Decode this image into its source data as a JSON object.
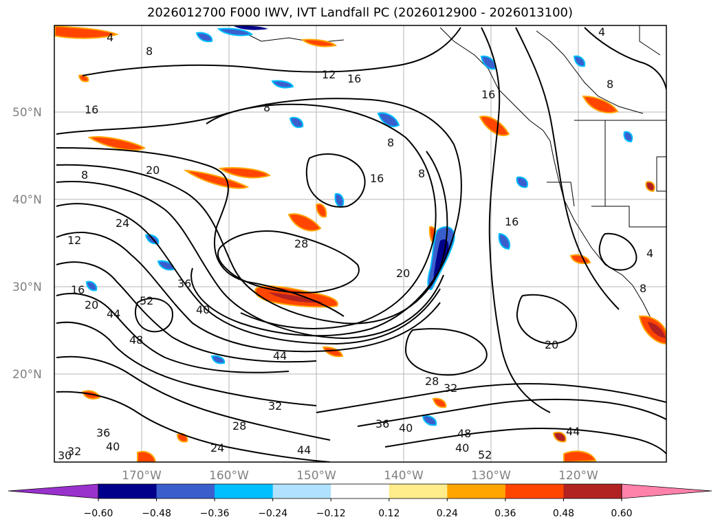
{
  "title": "2026012700 F000 IWV, IVT Landfall PC (2026012900 - 2026013100)",
  "map": {
    "lat_ticks": [
      "50°N",
      "40°N",
      "30°N",
      "20°N"
    ],
    "lon_ticks": [
      "170°W",
      "160°W",
      "150°W",
      "140°W",
      "130°W",
      "120°W"
    ],
    "contour_labels": [
      "4",
      "8",
      "12",
      "16",
      "8",
      "16",
      "16",
      "8",
      "8",
      "20",
      "24",
      "12",
      "16",
      "20",
      "36",
      "44",
      "52",
      "48",
      "40",
      "44",
      "32",
      "28",
      "24",
      "36",
      "40",
      "44",
      "48",
      "52",
      "28",
      "32",
      "20",
      "44",
      "40",
      "36",
      "30",
      "32",
      "40",
      "20",
      "16",
      "8",
      "8",
      "16",
      "4",
      "4",
      "8",
      "28"
    ]
  },
  "colorbar": {
    "tick_labels": [
      "−0.60",
      "−0.48",
      "−0.36",
      "−0.24",
      "−0.12",
      "0.12",
      "0.24",
      "0.36",
      "0.48",
      "0.60"
    ],
    "colors": {
      "under": "#9932cc",
      "bins": [
        "#00008b",
        "#3a5fcd",
        "#00bfff",
        "#b0e2ff",
        "#ffffff",
        "#ffec8b",
        "#ffa500",
        "#ff4500",
        "#b22222"
      ],
      "over": "#ff82ab"
    }
  }
}
